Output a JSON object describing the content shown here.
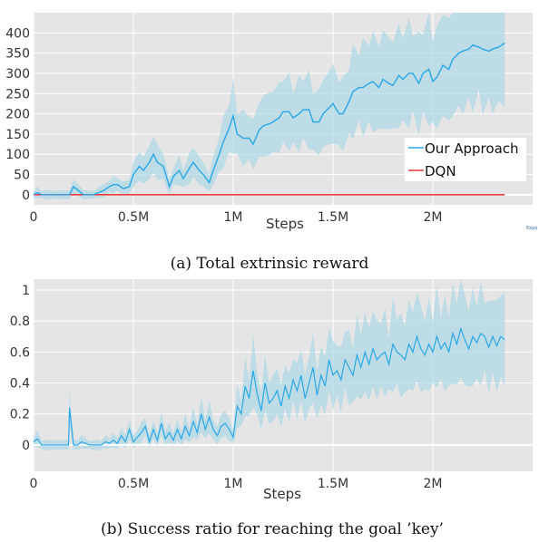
{
  "chart_data": [
    {
      "type": "line",
      "caption": "(a) Total extrinsic reward",
      "xlabel": "Steps",
      "ylabel": "",
      "xlim": [
        0,
        2500000
      ],
      "ylim": [
        -25,
        450
      ],
      "x_ticks": [
        0,
        500000,
        1000000,
        1500000,
        2000000
      ],
      "x_tick_labels": [
        "0",
        "0.5M",
        "1M",
        "1.5M",
        "2M"
      ],
      "y_ticks": [
        0,
        50,
        100,
        150,
        200,
        250,
        300,
        350,
        400
      ],
      "y_tick_labels": [
        "0",
        "50",
        "100",
        "150",
        "200",
        "250",
        "300",
        "350",
        "400"
      ],
      "grid": true,
      "legend_position": "bottom-right",
      "corner_text": "Expo",
      "colors": {
        "approach": "#29a7e6",
        "band": "#add8e6",
        "dqn": "#e8373d",
        "plot_bg": "#e5e5e5"
      },
      "series": [
        {
          "name": "Our Approach",
          "x": [
            0,
            20000,
            40000,
            70000,
            100000,
            150000,
            180000,
            200000,
            250000,
            300000,
            350000,
            380000,
            400000,
            420000,
            450000,
            480000,
            500000,
            530000,
            550000,
            580000,
            600000,
            620000,
            650000,
            680000,
            700000,
            730000,
            750000,
            780000,
            800000,
            830000,
            850000,
            880000,
            900000,
            930000,
            950000,
            980000,
            1000000,
            1020000,
            1050000,
            1080000,
            1100000,
            1130000,
            1150000,
            1180000,
            1200000,
            1230000,
            1250000,
            1280000,
            1300000,
            1330000,
            1350000,
            1380000,
            1400000,
            1430000,
            1450000,
            1480000,
            1500000,
            1530000,
            1550000,
            1580000,
            1600000,
            1630000,
            1650000,
            1680000,
            1700000,
            1730000,
            1750000,
            1780000,
            1800000,
            1830000,
            1850000,
            1880000,
            1900000,
            1930000,
            1950000,
            1980000,
            2000000,
            2020000,
            2050000,
            2080000,
            2100000,
            2130000,
            2150000,
            2180000,
            2200000,
            2230000,
            2250000,
            2280000,
            2300000,
            2330000,
            2360000
          ],
          "y": [
            0,
            5,
            0,
            0,
            0,
            0,
            0,
            20,
            0,
            0,
            10,
            20,
            25,
            25,
            15,
            20,
            50,
            70,
            60,
            80,
            100,
            80,
            70,
            20,
            45,
            60,
            40,
            65,
            80,
            60,
            50,
            30,
            60,
            100,
            130,
            165,
            195,
            150,
            140,
            140,
            125,
            160,
            170,
            175,
            180,
            190,
            205,
            205,
            190,
            200,
            210,
            210,
            180,
            180,
            200,
            215,
            225,
            200,
            200,
            230,
            255,
            265,
            265,
            275,
            280,
            265,
            285,
            275,
            270,
            295,
            285,
            300,
            300,
            275,
            300,
            310,
            280,
            290,
            320,
            310,
            335,
            350,
            355,
            360,
            370,
            365,
            360,
            355,
            360,
            365,
            375
          ]
        },
        {
          "name": "DQN",
          "x": [
            0,
            2360000
          ],
          "y": [
            0,
            0
          ]
        }
      ]
    },
    {
      "type": "line",
      "caption": "(b) Success ratio for reaching the goal ’key’",
      "xlabel": "Steps",
      "ylabel": "",
      "xlim": [
        0,
        2500000
      ],
      "ylim": [
        -0.17,
        1.07
      ],
      "x_ticks": [
        0,
        500000,
        1000000,
        1500000,
        2000000
      ],
      "x_tick_labels": [
        "0",
        "0.5M",
        "1M",
        "1.5M",
        "2M"
      ],
      "y_ticks": [
        0,
        0.2,
        0.4,
        0.6,
        0.8,
        1
      ],
      "y_tick_labels": [
        "0",
        "0.2",
        "0.4",
        "0.6",
        "0.8",
        "1"
      ],
      "grid": true,
      "colors": {
        "line": "#29a7e6",
        "band": "#add8e6",
        "plot_bg": "#e5e5e5"
      },
      "series": [
        {
          "x": [
            0,
            20000,
            40000,
            80000,
            120000,
            160000,
            175000,
            180000,
            200000,
            220000,
            240000,
            280000,
            320000,
            340000,
            360000,
            380000,
            400000,
            420000,
            440000,
            460000,
            480000,
            500000,
            520000,
            540000,
            560000,
            580000,
            600000,
            620000,
            640000,
            660000,
            680000,
            700000,
            720000,
            740000,
            760000,
            780000,
            800000,
            820000,
            840000,
            860000,
            880000,
            900000,
            920000,
            940000,
            960000,
            980000,
            1000000,
            1020000,
            1040000,
            1060000,
            1080000,
            1100000,
            1120000,
            1140000,
            1160000,
            1180000,
            1200000,
            1220000,
            1240000,
            1260000,
            1280000,
            1300000,
            1320000,
            1340000,
            1360000,
            1380000,
            1400000,
            1420000,
            1440000,
            1460000,
            1480000,
            1500000,
            1520000,
            1540000,
            1560000,
            1580000,
            1600000,
            1620000,
            1640000,
            1660000,
            1680000,
            1700000,
            1720000,
            1740000,
            1760000,
            1780000,
            1800000,
            1820000,
            1840000,
            1860000,
            1880000,
            1900000,
            1920000,
            1940000,
            1960000,
            1980000,
            2000000,
            2020000,
            2040000,
            2060000,
            2080000,
            2100000,
            2120000,
            2140000,
            2160000,
            2180000,
            2200000,
            2220000,
            2240000,
            2260000,
            2280000,
            2300000,
            2320000,
            2340000,
            2360000
          ],
          "y": [
            0.02,
            0.04,
            0,
            0,
            0,
            0,
            0,
            0.24,
            0,
            0,
            0.02,
            0,
            0,
            0,
            0.02,
            0.01,
            0.03,
            0.01,
            0.06,
            0.02,
            0.1,
            0.02,
            0.05,
            0.08,
            0.12,
            0.02,
            0.1,
            0.03,
            0.14,
            0.04,
            0.08,
            0.03,
            0.1,
            0.04,
            0.12,
            0.06,
            0.15,
            0.08,
            0.2,
            0.1,
            0.18,
            0.1,
            0.06,
            0.12,
            0.14,
            0.1,
            0.05,
            0.25,
            0.2,
            0.38,
            0.3,
            0.48,
            0.33,
            0.22,
            0.4,
            0.27,
            0.3,
            0.35,
            0.25,
            0.38,
            0.3,
            0.42,
            0.35,
            0.45,
            0.3,
            0.4,
            0.5,
            0.32,
            0.45,
            0.38,
            0.55,
            0.45,
            0.48,
            0.42,
            0.55,
            0.5,
            0.45,
            0.58,
            0.5,
            0.6,
            0.52,
            0.62,
            0.55,
            0.58,
            0.6,
            0.52,
            0.65,
            0.6,
            0.58,
            0.55,
            0.65,
            0.6,
            0.7,
            0.62,
            0.58,
            0.65,
            0.6,
            0.7,
            0.62,
            0.66,
            0.6,
            0.72,
            0.65,
            0.75,
            0.68,
            0.62,
            0.7,
            0.66,
            0.72,
            0.7,
            0.63,
            0.7,
            0.64,
            0.7,
            0.68
          ]
        }
      ]
    }
  ]
}
